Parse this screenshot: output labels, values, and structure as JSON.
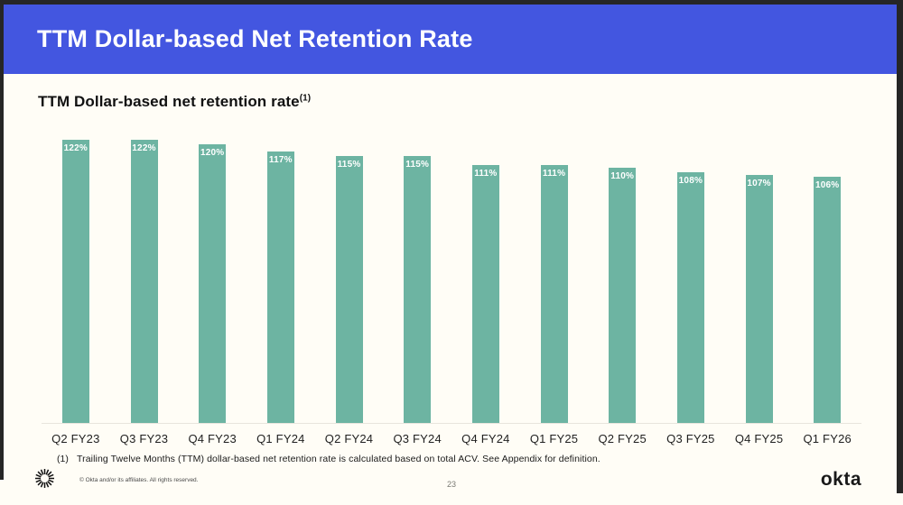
{
  "header": {
    "title": "TTM Dollar-based Net Retention Rate",
    "bg_color": "#4356E0",
    "text_color": "#FFFFFF"
  },
  "chart": {
    "title": "TTM Dollar-based net retention rate",
    "title_superscript": "(1)",
    "bar_color": "#6DB4A2",
    "value_label_color": "#FFFFFF"
  },
  "chart_data": {
    "type": "bar",
    "title": "TTM Dollar-based net retention rate (1)",
    "categories": [
      "Q2 FY23",
      "Q3 FY23",
      "Q4 FY23",
      "Q1 FY24",
      "Q2 FY24",
      "Q3 FY24",
      "Q4 FY24",
      "Q1 FY25",
      "Q2 FY25",
      "Q3 FY25",
      "Q4 FY25",
      "Q1 FY26"
    ],
    "values": [
      122,
      122,
      120,
      117,
      115,
      115,
      111,
      111,
      110,
      108,
      107,
      106
    ],
    "value_suffix": "%",
    "xlabel": "",
    "ylabel": "",
    "ylim": [
      0,
      124
    ],
    "grid": false,
    "legend": false,
    "bar_color": "#6DB4A2",
    "value_labels_position": "inside-top"
  },
  "footnote": {
    "marker": "(1)",
    "text": "Trailing Twelve Months (TTM) dollar-based net retention rate is calculated based on total ACV. See Appendix for definition."
  },
  "footer": {
    "copyright": "© Okta and/or its affiliates. All rights reserved.",
    "page_number": "23",
    "logo_text": "okta"
  }
}
